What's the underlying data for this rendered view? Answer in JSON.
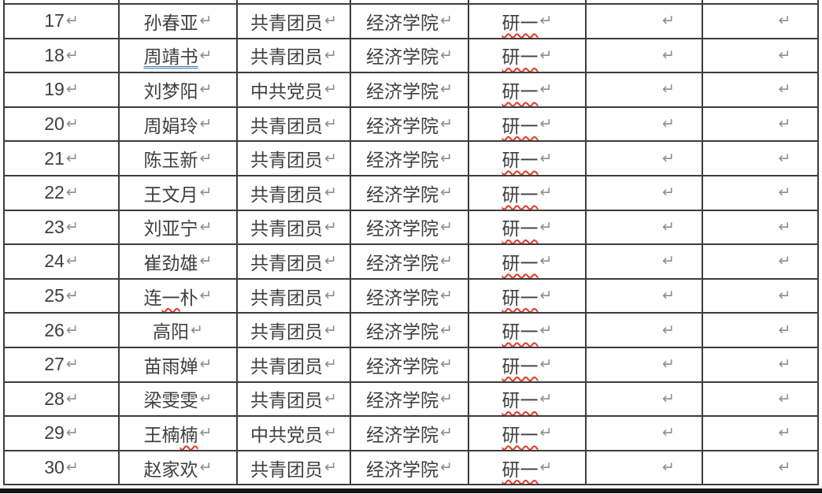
{
  "glyphs": {
    "return_mark": "↵"
  },
  "colors": {
    "background": "#ffffff",
    "table_border": "#3c3c3c",
    "cell_text": "#3f3f3f",
    "return_mark": "#8e8e8e",
    "spellcheck_underline_red": "#e13b2a",
    "grammar_underline_blue": "#3e74b5",
    "page_bottom_edge": "#121212"
  },
  "table": {
    "column_keys": [
      "number",
      "name",
      "political_status",
      "college",
      "grade",
      "empty_1",
      "empty_2"
    ],
    "rows": [
      {
        "no": "17",
        "name_segments": [
          {
            "t": "孙春亚",
            "m": ""
          }
        ],
        "status": "共青团员",
        "college": "经济学院",
        "grade": "研一"
      },
      {
        "no": "18",
        "name_segments": [
          {
            "t": "周靖书",
            "m": "grammar"
          }
        ],
        "status": "共青团员",
        "college": "经济学院",
        "grade": "研一"
      },
      {
        "no": "19",
        "name_segments": [
          {
            "t": "刘梦阳",
            "m": ""
          }
        ],
        "status": "中共党员",
        "college": "经济学院",
        "grade": "研一"
      },
      {
        "no": "20",
        "name_segments": [
          {
            "t": "周娟玲",
            "m": ""
          }
        ],
        "status": "共青团员",
        "college": "经济学院",
        "grade": "研一"
      },
      {
        "no": "21",
        "name_segments": [
          {
            "t": "陈玉新",
            "m": ""
          }
        ],
        "status": "共青团员",
        "college": "经济学院",
        "grade": "研一"
      },
      {
        "no": "22",
        "name_segments": [
          {
            "t": "王文月",
            "m": ""
          }
        ],
        "status": "共青团员",
        "college": "经济学院",
        "grade": "研一"
      },
      {
        "no": "23",
        "name_segments": [
          {
            "t": "刘亚宁",
            "m": ""
          }
        ],
        "status": "共青团员",
        "college": "经济学院",
        "grade": "研一"
      },
      {
        "no": "24",
        "name_segments": [
          {
            "t": "崔劲雄",
            "m": ""
          }
        ],
        "status": "共青团员",
        "college": "经济学院",
        "grade": "研一"
      },
      {
        "no": "25",
        "name_segments": [
          {
            "t": "连",
            "m": ""
          },
          {
            "t": "一",
            "m": "spell"
          },
          {
            "t": "朴",
            "m": ""
          }
        ],
        "status": "共青团员",
        "college": "经济学院",
        "grade": "研一"
      },
      {
        "no": "26",
        "name_segments": [
          {
            "t": "高阳",
            "m": ""
          }
        ],
        "status": "共青团员",
        "college": "经济学院",
        "grade": "研一"
      },
      {
        "no": "27",
        "name_segments": [
          {
            "t": "苗雨婵",
            "m": ""
          }
        ],
        "status": "共青团员",
        "college": "经济学院",
        "grade": "研一"
      },
      {
        "no": "28",
        "name_segments": [
          {
            "t": "梁雯雯",
            "m": ""
          }
        ],
        "status": "共青团员",
        "college": "经济学院",
        "grade": "研一"
      },
      {
        "no": "29",
        "name_segments": [
          {
            "t": "王楠",
            "m": ""
          },
          {
            "t": "楠",
            "m": "spell"
          }
        ],
        "status": "中共党员",
        "college": "经济学院",
        "grade": "研一"
      },
      {
        "no": "30",
        "name_segments": [
          {
            "t": "赵家欢",
            "m": ""
          }
        ],
        "status": "共青团员",
        "college": "经济学院",
        "grade": "研一"
      }
    ]
  }
}
